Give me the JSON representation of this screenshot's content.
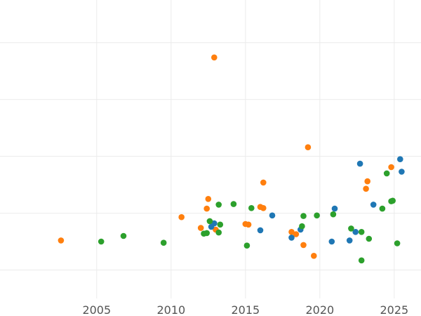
{
  "chart_data": {
    "type": "scatter",
    "title": "",
    "xlabel": "",
    "ylabel": "",
    "xlim": [
      1998.5,
      2026.8
    ],
    "ylim": [
      -0.5,
      4.75
    ],
    "x_ticks": [
      2005,
      2010,
      2015,
      2020,
      2025
    ],
    "x_tick_labels": [
      "2005",
      "2010",
      "2015",
      "2020",
      "2025"
    ],
    "y_ticks": [
      0,
      1,
      2,
      3,
      4
    ],
    "grid": true,
    "series": [
      {
        "color": "#ff7f0e",
        "points": [
          [
            2002.6,
            0.52
          ],
          [
            2010.7,
            0.93
          ],
          [
            2012.0,
            0.74
          ],
          [
            2012.4,
            1.08
          ],
          [
            2012.5,
            1.25
          ],
          [
            2012.9,
            3.74
          ],
          [
            2013.0,
            0.71
          ],
          [
            2015.0,
            0.81
          ],
          [
            2015.2,
            0.8
          ],
          [
            2016.0,
            1.11
          ],
          [
            2016.2,
            1.09
          ],
          [
            2016.2,
            1.54
          ],
          [
            2018.1,
            0.67
          ],
          [
            2018.4,
            0.63
          ],
          [
            2018.9,
            0.44
          ],
          [
            2019.2,
            2.16
          ],
          [
            2019.6,
            0.25
          ],
          [
            2023.1,
            1.43
          ],
          [
            2023.2,
            1.56
          ],
          [
            2024.8,
            1.81
          ]
        ]
      },
      {
        "color": "#1f77b4",
        "points": [
          [
            2012.7,
            0.76
          ],
          [
            2012.9,
            0.82
          ],
          [
            2016.0,
            0.7
          ],
          [
            2016.8,
            0.96
          ],
          [
            2018.1,
            0.57
          ],
          [
            2018.7,
            0.71
          ],
          [
            2020.8,
            0.5
          ],
          [
            2021.0,
            1.08
          ],
          [
            2022.0,
            0.52
          ],
          [
            2022.4,
            0.67
          ],
          [
            2022.7,
            1.87
          ],
          [
            2023.6,
            1.15
          ],
          [
            2025.4,
            1.95
          ],
          [
            2025.5,
            1.73
          ]
        ]
      },
      {
        "color": "#2ca02c",
        "points": [
          [
            2005.3,
            0.5
          ],
          [
            2006.8,
            0.6
          ],
          [
            2009.5,
            0.48
          ],
          [
            2012.2,
            0.64
          ],
          [
            2012.4,
            0.65
          ],
          [
            2012.6,
            0.86
          ],
          [
            2013.2,
            0.66
          ],
          [
            2013.2,
            1.15
          ],
          [
            2013.3,
            0.8
          ],
          [
            2014.2,
            1.16
          ],
          [
            2015.1,
            0.43
          ],
          [
            2015.4,
            1.09
          ],
          [
            2018.8,
            0.77
          ],
          [
            2018.9,
            0.95
          ],
          [
            2019.8,
            0.96
          ],
          [
            2020.9,
            0.98
          ],
          [
            2022.1,
            0.73
          ],
          [
            2022.8,
            0.67
          ],
          [
            2022.8,
            0.17
          ],
          [
            2023.3,
            0.55
          ],
          [
            2024.2,
            1.08
          ],
          [
            2024.5,
            1.7
          ],
          [
            2024.8,
            1.21
          ],
          [
            2024.9,
            1.22
          ],
          [
            2025.2,
            0.47
          ]
        ]
      }
    ]
  }
}
